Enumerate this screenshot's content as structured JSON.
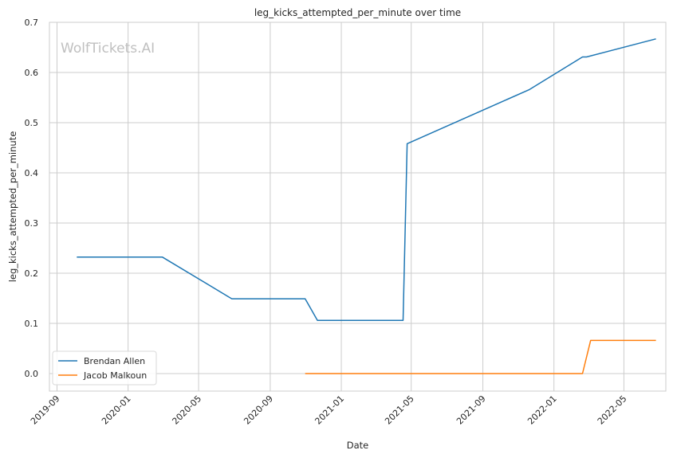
{
  "chart_data": {
    "type": "line",
    "title": "leg_kicks_attempted_per_minute over time",
    "xlabel": "Date",
    "ylabel": "leg_kicks_attempted_per_minute",
    "watermark": "WolfTickets.AI",
    "xlim": [
      "2019-08-19",
      "2022-07-12"
    ],
    "ylim": [
      -0.035,
      0.7
    ],
    "x_ticks": [
      "2019-09",
      "2020-01",
      "2020-05",
      "2020-09",
      "2021-01",
      "2021-05",
      "2021-09",
      "2022-01",
      "2022-05"
    ],
    "y_ticks": [
      "0.0",
      "0.1",
      "0.2",
      "0.3",
      "0.4",
      "0.5",
      "0.6",
      "0.7"
    ],
    "grid": true,
    "legend_position": "bottom-left",
    "series": [
      {
        "name": "Brendan Allen",
        "color": "#1f77b4",
        "points": [
          {
            "x": "2019-10-05",
            "y": 0.232
          },
          {
            "x": "2020-02-29",
            "y": 0.232
          },
          {
            "x": "2020-06-27",
            "y": 0.149
          },
          {
            "x": "2020-10-31",
            "y": 0.149
          },
          {
            "x": "2020-11-21",
            "y": 0.106
          },
          {
            "x": "2021-04-17",
            "y": 0.106
          },
          {
            "x": "2021-04-24",
            "y": 0.458
          },
          {
            "x": "2021-11-20",
            "y": 0.566
          },
          {
            "x": "2022-02-19",
            "y": 0.631
          },
          {
            "x": "2022-02-26",
            "y": 0.631
          },
          {
            "x": "2022-06-25",
            "y": 0.667
          }
        ]
      },
      {
        "name": "Jacob Malkoun",
        "color": "#ff7f0e",
        "points": [
          {
            "x": "2020-10-31",
            "y": 0.0
          },
          {
            "x": "2022-02-19",
            "y": 0.0
          },
          {
            "x": "2022-03-05",
            "y": 0.066
          },
          {
            "x": "2022-06-25",
            "y": 0.066
          }
        ]
      }
    ]
  }
}
